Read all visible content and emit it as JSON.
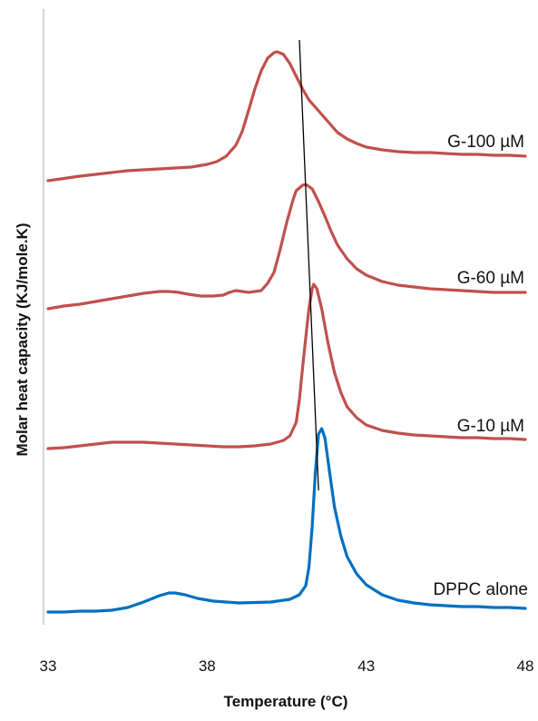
{
  "chart_data": {
    "type": "line",
    "title": "",
    "xlabel": "Temperature (°C)",
    "ylabel": "Molar heat capacity (KJ/mole.K)",
    "xlim": [
      33,
      48
    ],
    "x_ticks": [
      "33",
      "38",
      "43",
      "48"
    ],
    "y_ticks_shown": false,
    "grid": false,
    "legend": "none",
    "series": [
      {
        "name": "G-100 µM",
        "color": "#c0504d",
        "points": [
          [
            33.0,
            199
          ],
          [
            34.0,
            194
          ],
          [
            35.0,
            190
          ],
          [
            35.5,
            188
          ],
          [
            36.0,
            187
          ],
          [
            36.5,
            186
          ],
          [
            37.0,
            185
          ],
          [
            37.5,
            184
          ],
          [
            38.0,
            181
          ],
          [
            38.3,
            178
          ],
          [
            38.6,
            172
          ],
          [
            38.9,
            160
          ],
          [
            39.1,
            145
          ],
          [
            39.3,
            122
          ],
          [
            39.5,
            98
          ],
          [
            39.7,
            78
          ],
          [
            39.9,
            64
          ],
          [
            40.1,
            58
          ],
          [
            40.2,
            57
          ],
          [
            40.4,
            60
          ],
          [
            40.6,
            70
          ],
          [
            40.8,
            84
          ],
          [
            41.0,
            98
          ],
          [
            41.2,
            110
          ],
          [
            41.5,
            122
          ],
          [
            41.8,
            134
          ],
          [
            42.1,
            146
          ],
          [
            42.4,
            153
          ],
          [
            42.7,
            158
          ],
          [
            43.0,
            162
          ],
          [
            43.5,
            165
          ],
          [
            44.0,
            167
          ],
          [
            44.5,
            168
          ],
          [
            45.0,
            168
          ],
          [
            45.5,
            169
          ],
          [
            46.0,
            170
          ],
          [
            46.5,
            170
          ],
          [
            47.0,
            171
          ],
          [
            47.5,
            171
          ],
          [
            48.0,
            172
          ]
        ]
      },
      {
        "name": "G-60 µM",
        "color": "#c0504d",
        "points": [
          [
            33.0,
            340
          ],
          [
            33.5,
            337
          ],
          [
            34.0,
            335
          ],
          [
            34.5,
            332
          ],
          [
            35.0,
            329
          ],
          [
            35.5,
            326
          ],
          [
            36.0,
            323
          ],
          [
            36.5,
            321
          ],
          [
            36.8,
            321
          ],
          [
            37.1,
            322
          ],
          [
            37.4,
            324
          ],
          [
            37.8,
            326
          ],
          [
            38.2,
            326
          ],
          [
            38.5,
            325
          ],
          [
            38.7,
            322
          ],
          [
            38.9,
            320
          ],
          [
            39.1,
            321
          ],
          [
            39.3,
            322
          ],
          [
            39.5,
            321
          ],
          [
            39.7,
            320
          ],
          [
            39.9,
            312
          ],
          [
            40.1,
            300
          ],
          [
            40.3,
            274
          ],
          [
            40.5,
            245
          ],
          [
            40.7,
            220
          ],
          [
            40.8,
            210
          ],
          [
            41.0,
            204
          ],
          [
            41.1,
            203
          ],
          [
            41.3,
            208
          ],
          [
            41.5,
            222
          ],
          [
            41.7,
            238
          ],
          [
            41.9,
            255
          ],
          [
            42.1,
            270
          ],
          [
            42.4,
            285
          ],
          [
            42.7,
            296
          ],
          [
            43.0,
            303
          ],
          [
            43.5,
            310
          ],
          [
            44.0,
            314
          ],
          [
            44.5,
            316
          ],
          [
            45.0,
            318
          ],
          [
            45.5,
            319
          ],
          [
            46.0,
            320
          ],
          [
            46.5,
            321
          ],
          [
            47.0,
            322
          ],
          [
            47.5,
            322
          ],
          [
            48.0,
            322
          ]
        ]
      },
      {
        "name": "G-10 µM",
        "color": "#c0504d",
        "points": [
          [
            33.0,
            494
          ],
          [
            33.5,
            493
          ],
          [
            34.0,
            491
          ],
          [
            34.5,
            489
          ],
          [
            35.0,
            487
          ],
          [
            35.5,
            487
          ],
          [
            36.0,
            487
          ],
          [
            36.5,
            488
          ],
          [
            37.0,
            489
          ],
          [
            37.5,
            490
          ],
          [
            38.0,
            491
          ],
          [
            38.5,
            492
          ],
          [
            39.0,
            492
          ],
          [
            39.5,
            491
          ],
          [
            40.0,
            489
          ],
          [
            40.4,
            485
          ],
          [
            40.6,
            480
          ],
          [
            40.8,
            465
          ],
          [
            40.9,
            440
          ],
          [
            41.0,
            405
          ],
          [
            41.1,
            372
          ],
          [
            41.2,
            340
          ],
          [
            41.3,
            318
          ],
          [
            41.35,
            313
          ],
          [
            41.45,
            318
          ],
          [
            41.6,
            340
          ],
          [
            41.8,
            378
          ],
          [
            42.0,
            410
          ],
          [
            42.2,
            432
          ],
          [
            42.4,
            448
          ],
          [
            42.7,
            460
          ],
          [
            43.0,
            468
          ],
          [
            43.5,
            474
          ],
          [
            44.0,
            477
          ],
          [
            44.5,
            479
          ],
          [
            45.0,
            480
          ],
          [
            45.5,
            481
          ],
          [
            46.0,
            482
          ],
          [
            46.5,
            482
          ],
          [
            47.0,
            483
          ],
          [
            47.5,
            483
          ],
          [
            48.0,
            484
          ]
        ]
      },
      {
        "name": "DPPC alone",
        "color": "#0070c0",
        "points": [
          [
            33.0,
            674
          ],
          [
            33.5,
            674
          ],
          [
            34.0,
            673
          ],
          [
            34.5,
            673
          ],
          [
            35.0,
            672
          ],
          [
            35.5,
            669
          ],
          [
            36.0,
            663
          ],
          [
            36.5,
            656
          ],
          [
            36.8,
            653
          ],
          [
            37.0,
            653
          ],
          [
            37.3,
            655
          ],
          [
            37.7,
            659
          ],
          [
            38.2,
            662
          ],
          [
            39.0,
            664
          ],
          [
            40.0,
            663
          ],
          [
            40.6,
            660
          ],
          [
            40.9,
            655
          ],
          [
            41.1,
            645
          ],
          [
            41.2,
            625
          ],
          [
            41.3,
            580
          ],
          [
            41.4,
            520
          ],
          [
            41.5,
            478
          ],
          [
            41.6,
            472
          ],
          [
            41.7,
            482
          ],
          [
            41.85,
            520
          ],
          [
            42.0,
            558
          ],
          [
            42.2,
            590
          ],
          [
            42.4,
            613
          ],
          [
            42.7,
            632
          ],
          [
            43.0,
            644
          ],
          [
            43.5,
            655
          ],
          [
            44.0,
            661
          ],
          [
            44.5,
            664
          ],
          [
            45.0,
            666
          ],
          [
            45.5,
            667
          ],
          [
            46.0,
            668
          ],
          [
            46.5,
            668
          ],
          [
            47.0,
            669
          ],
          [
            47.5,
            669
          ],
          [
            48.0,
            670
          ]
        ]
      }
    ],
    "annotations": {
      "trend_line": {
        "description": "black line through peak maxima",
        "from": [
          40.9,
          44
        ],
        "to": [
          41.5,
          540
        ]
      }
    }
  }
}
